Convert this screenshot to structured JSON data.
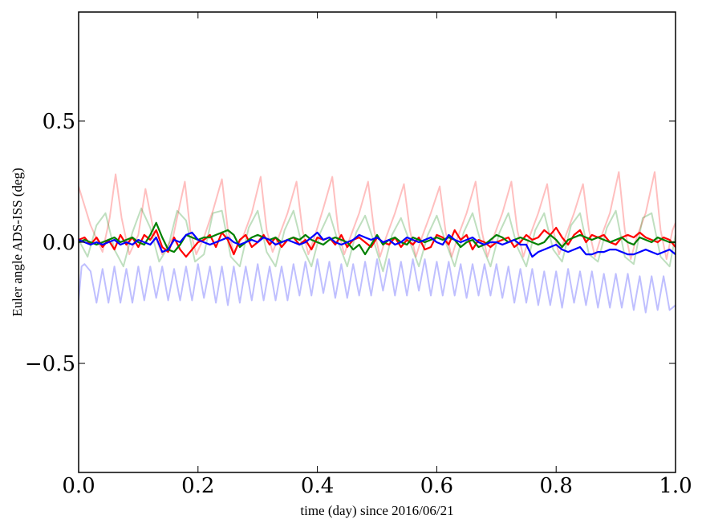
{
  "chart_data": {
    "type": "line",
    "title": "",
    "xlabel": "time (day) since 2016/06/21",
    "ylabel": "Euler angle ADS-ISS (deg)",
    "xlim": [
      0.0,
      1.0
    ],
    "ylim": [
      -0.95,
      0.95
    ],
    "grid": false,
    "legend": "none",
    "x_ticks": [
      0.0,
      0.2,
      0.4,
      0.6,
      0.8,
      1.0
    ],
    "x_tick_labels": [
      "0.0",
      "0.2",
      "0.4",
      "0.6",
      "0.8",
      "1.0"
    ],
    "y_ticks": [
      -0.5,
      0.0,
      0.5
    ],
    "y_tick_labels": [
      "−0.5",
      "0.0",
      "0.5"
    ],
    "series": [
      {
        "color": "#ff0000",
        "opacity": 0.25,
        "x": [
          0.0,
          0.02,
          0.04,
          0.052,
          0.062,
          0.072,
          0.085,
          0.1,
          0.112,
          0.127,
          0.14,
          0.158,
          0.17,
          0.178,
          0.187,
          0.197,
          0.21,
          0.225,
          0.24,
          0.25,
          0.26,
          0.275,
          0.29,
          0.305,
          0.315,
          0.325,
          0.335,
          0.35,
          0.365,
          0.375,
          0.385,
          0.395,
          0.41,
          0.425,
          0.435,
          0.445,
          0.455,
          0.47,
          0.485,
          0.495,
          0.505,
          0.515,
          0.53,
          0.545,
          0.555,
          0.565,
          0.575,
          0.59,
          0.605,
          0.615,
          0.625,
          0.635,
          0.65,
          0.665,
          0.675,
          0.685,
          0.695,
          0.71,
          0.725,
          0.735,
          0.745,
          0.755,
          0.77,
          0.785,
          0.795,
          0.805,
          0.815,
          0.83,
          0.845,
          0.855,
          0.865,
          0.875,
          0.89,
          0.905,
          0.915,
          0.925,
          0.935,
          0.95,
          0.965,
          0.975,
          0.985,
          0.995,
          1.0
        ],
        "y": [
          0.23,
          0.07,
          -0.04,
          0.1,
          0.28,
          0.1,
          -0.05,
          0.03,
          0.22,
          0.03,
          -0.05,
          0.02,
          0.16,
          0.25,
          0.05,
          -0.05,
          0.02,
          0.13,
          0.26,
          0.05,
          -0.04,
          0.02,
          0.12,
          0.27,
          0.05,
          -0.04,
          0.02,
          0.12,
          0.25,
          0.05,
          -0.05,
          0.02,
          0.14,
          0.27,
          0.05,
          -0.05,
          0.02,
          0.12,
          0.25,
          0.05,
          -0.06,
          0.02,
          0.12,
          0.24,
          0.05,
          -0.06,
          0.02,
          0.12,
          0.23,
          0.04,
          -0.06,
          0.02,
          0.12,
          0.25,
          0.05,
          -0.06,
          0.02,
          0.12,
          0.25,
          0.05,
          -0.06,
          0.02,
          0.12,
          0.24,
          0.05,
          -0.05,
          0.02,
          0.12,
          0.24,
          0.05,
          -0.06,
          0.02,
          0.12,
          0.29,
          0.05,
          -0.07,
          0.02,
          0.12,
          0.29,
          0.05,
          -0.07,
          0.05,
          0.08
        ]
      },
      {
        "color": "#008000",
        "opacity": 0.25,
        "x": [
          0.0,
          0.015,
          0.03,
          0.045,
          0.06,
          0.075,
          0.09,
          0.105,
          0.12,
          0.135,
          0.15,
          0.165,
          0.18,
          0.195,
          0.21,
          0.225,
          0.24,
          0.255,
          0.27,
          0.285,
          0.3,
          0.315,
          0.33,
          0.345,
          0.36,
          0.375,
          0.39,
          0.405,
          0.42,
          0.435,
          0.45,
          0.465,
          0.48,
          0.495,
          0.51,
          0.525,
          0.54,
          0.555,
          0.57,
          0.585,
          0.6,
          0.615,
          0.63,
          0.645,
          0.66,
          0.675,
          0.69,
          0.705,
          0.72,
          0.735,
          0.75,
          0.765,
          0.78,
          0.795,
          0.81,
          0.825,
          0.84,
          0.855,
          0.87,
          0.885,
          0.9,
          0.915,
          0.93,
          0.945,
          0.96,
          0.975,
          0.99,
          1.0
        ],
        "y": [
          0.01,
          -0.06,
          0.07,
          0.12,
          -0.03,
          -0.1,
          0.04,
          0.14,
          0.06,
          -0.08,
          -0.02,
          0.13,
          0.09,
          -0.08,
          -0.05,
          0.12,
          0.13,
          -0.06,
          -0.1,
          0.06,
          0.13,
          -0.04,
          -0.1,
          0.05,
          0.13,
          -0.02,
          -0.1,
          0.04,
          0.12,
          0.0,
          -0.1,
          0.04,
          0.11,
          0.0,
          -0.12,
          0.03,
          0.1,
          0.0,
          -0.1,
          0.03,
          0.11,
          0.0,
          -0.1,
          0.04,
          0.12,
          -0.01,
          -0.1,
          0.04,
          0.12,
          -0.02,
          -0.1,
          0.05,
          0.12,
          -0.03,
          -0.08,
          0.07,
          0.12,
          -0.05,
          -0.08,
          0.06,
          0.13,
          -0.06,
          -0.09,
          0.1,
          0.12,
          -0.06,
          -0.1,
          0.03
        ]
      },
      {
        "color": "#0000ff",
        "opacity": 0.25,
        "x": [
          0.0,
          0.005,
          0.01,
          0.02,
          0.03,
          0.04,
          0.05,
          0.06,
          0.07,
          0.08,
          0.09,
          0.1,
          0.11,
          0.12,
          0.13,
          0.14,
          0.15,
          0.16,
          0.17,
          0.18,
          0.19,
          0.2,
          0.21,
          0.22,
          0.23,
          0.24,
          0.25,
          0.26,
          0.27,
          0.28,
          0.29,
          0.3,
          0.31,
          0.32,
          0.33,
          0.34,
          0.35,
          0.36,
          0.37,
          0.38,
          0.39,
          0.4,
          0.41,
          0.42,
          0.43,
          0.44,
          0.45,
          0.46,
          0.47,
          0.48,
          0.49,
          0.5,
          0.51,
          0.52,
          0.53,
          0.54,
          0.55,
          0.56,
          0.57,
          0.58,
          0.59,
          0.6,
          0.61,
          0.62,
          0.63,
          0.64,
          0.65,
          0.66,
          0.67,
          0.68,
          0.69,
          0.7,
          0.71,
          0.72,
          0.73,
          0.74,
          0.75,
          0.76,
          0.77,
          0.78,
          0.79,
          0.8,
          0.81,
          0.82,
          0.83,
          0.84,
          0.85,
          0.86,
          0.87,
          0.88,
          0.89,
          0.9,
          0.91,
          0.92,
          0.93,
          0.94,
          0.95,
          0.96,
          0.97,
          0.98,
          0.99,
          1.0
        ],
        "y": [
          -0.24,
          -0.1,
          -0.09,
          -0.12,
          -0.25,
          -0.11,
          -0.25,
          -0.1,
          -0.25,
          -0.11,
          -0.25,
          -0.1,
          -0.24,
          -0.1,
          -0.23,
          -0.1,
          -0.24,
          -0.11,
          -0.24,
          -0.1,
          -0.24,
          -0.09,
          -0.23,
          -0.1,
          -0.25,
          -0.1,
          -0.26,
          -0.1,
          -0.25,
          -0.1,
          -0.24,
          -0.09,
          -0.24,
          -0.1,
          -0.24,
          -0.1,
          -0.24,
          -0.09,
          -0.22,
          -0.08,
          -0.22,
          -0.07,
          -0.21,
          -0.08,
          -0.23,
          -0.09,
          -0.23,
          -0.09,
          -0.22,
          -0.08,
          -0.22,
          -0.07,
          -0.2,
          -0.07,
          -0.22,
          -0.08,
          -0.22,
          -0.07,
          -0.2,
          -0.07,
          -0.22,
          -0.08,
          -0.22,
          -0.08,
          -0.22,
          -0.09,
          -0.23,
          -0.09,
          -0.22,
          -0.09,
          -0.22,
          -0.09,
          -0.23,
          -0.1,
          -0.25,
          -0.11,
          -0.25,
          -0.11,
          -0.26,
          -0.12,
          -0.26,
          -0.12,
          -0.27,
          -0.11,
          -0.25,
          -0.12,
          -0.26,
          -0.12,
          -0.27,
          -0.13,
          -0.27,
          -0.13,
          -0.27,
          -0.13,
          -0.28,
          -0.14,
          -0.29,
          -0.14,
          -0.28,
          -0.14,
          -0.28,
          -0.26
        ]
      },
      {
        "color": "#ff0000",
        "opacity": 1,
        "x": [
          0.0,
          0.01,
          0.02,
          0.03,
          0.04,
          0.05,
          0.06,
          0.07,
          0.08,
          0.09,
          0.1,
          0.11,
          0.12,
          0.13,
          0.14,
          0.15,
          0.16,
          0.17,
          0.18,
          0.19,
          0.2,
          0.21,
          0.22,
          0.23,
          0.24,
          0.25,
          0.26,
          0.27,
          0.28,
          0.29,
          0.3,
          0.31,
          0.32,
          0.33,
          0.34,
          0.35,
          0.36,
          0.37,
          0.38,
          0.39,
          0.4,
          0.41,
          0.42,
          0.43,
          0.44,
          0.45,
          0.46,
          0.47,
          0.48,
          0.49,
          0.5,
          0.51,
          0.52,
          0.53,
          0.54,
          0.55,
          0.56,
          0.57,
          0.58,
          0.59,
          0.6,
          0.61,
          0.62,
          0.63,
          0.64,
          0.65,
          0.66,
          0.67,
          0.68,
          0.69,
          0.7,
          0.71,
          0.72,
          0.73,
          0.74,
          0.75,
          0.76,
          0.77,
          0.78,
          0.79,
          0.8,
          0.81,
          0.82,
          0.83,
          0.84,
          0.85,
          0.86,
          0.87,
          0.88,
          0.89,
          0.9,
          0.91,
          0.92,
          0.93,
          0.94,
          0.95,
          0.96,
          0.97,
          0.98,
          0.99,
          1.0
        ],
        "y": [
          0.01,
          0.02,
          -0.01,
          0.02,
          -0.02,
          0.01,
          -0.03,
          0.03,
          -0.01,
          0.02,
          -0.02,
          0.03,
          0.01,
          0.05,
          -0.02,
          -0.04,
          0.02,
          -0.03,
          -0.06,
          -0.03,
          0.0,
          0.01,
          0.03,
          -0.02,
          0.04,
          0.01,
          -0.05,
          0.01,
          0.03,
          -0.02,
          0.0,
          0.03,
          -0.01,
          0.02,
          -0.02,
          0.01,
          0.02,
          -0.01,
          0.01,
          -0.03,
          0.02,
          0.01,
          0.02,
          -0.01,
          0.03,
          -0.02,
          0.01,
          0.02,
          0.0,
          -0.02,
          0.02,
          0.0,
          -0.01,
          0.02,
          -0.02,
          0.01,
          -0.01,
          0.02,
          -0.03,
          -0.02,
          0.03,
          0.02,
          -0.01,
          0.05,
          0.01,
          0.03,
          -0.03,
          0.01,
          0.0,
          -0.02,
          0.0,
          0.01,
          0.02,
          -0.02,
          0.0,
          0.03,
          0.01,
          0.02,
          0.05,
          0.03,
          0.06,
          0.02,
          -0.01,
          0.03,
          0.05,
          0.0,
          0.03,
          0.02,
          0.03,
          0.0,
          -0.01,
          0.02,
          0.03,
          0.02,
          0.04,
          0.02,
          0.01,
          0.0,
          0.02,
          0.01,
          -0.02
        ]
      },
      {
        "color": "#008000",
        "opacity": 1,
        "x": [
          0.0,
          0.01,
          0.02,
          0.03,
          0.04,
          0.05,
          0.06,
          0.07,
          0.08,
          0.09,
          0.1,
          0.11,
          0.12,
          0.13,
          0.14,
          0.15,
          0.16,
          0.17,
          0.18,
          0.19,
          0.2,
          0.21,
          0.22,
          0.23,
          0.24,
          0.25,
          0.26,
          0.27,
          0.28,
          0.29,
          0.3,
          0.31,
          0.32,
          0.33,
          0.34,
          0.35,
          0.36,
          0.37,
          0.38,
          0.39,
          0.4,
          0.41,
          0.42,
          0.43,
          0.44,
          0.45,
          0.46,
          0.47,
          0.48,
          0.49,
          0.5,
          0.51,
          0.52,
          0.53,
          0.54,
          0.55,
          0.56,
          0.57,
          0.58,
          0.59,
          0.6,
          0.61,
          0.62,
          0.63,
          0.64,
          0.65,
          0.66,
          0.67,
          0.68,
          0.69,
          0.7,
          0.71,
          0.72,
          0.73,
          0.74,
          0.75,
          0.76,
          0.77,
          0.78,
          0.79,
          0.8,
          0.81,
          0.82,
          0.83,
          0.84,
          0.85,
          0.86,
          0.87,
          0.88,
          0.89,
          0.9,
          0.91,
          0.92,
          0.93,
          0.94,
          0.95,
          0.96,
          0.97,
          0.98,
          0.99,
          1.0
        ],
        "y": [
          0.0,
          0.01,
          0.0,
          -0.01,
          0.0,
          0.01,
          0.02,
          0.0,
          0.01,
          0.02,
          0.0,
          -0.01,
          0.03,
          0.08,
          0.02,
          -0.03,
          -0.04,
          -0.01,
          0.03,
          0.02,
          0.01,
          0.02,
          0.02,
          0.03,
          0.04,
          0.05,
          0.03,
          -0.02,
          0.0,
          0.02,
          0.03,
          0.02,
          0.01,
          0.02,
          0.0,
          0.01,
          0.02,
          0.01,
          0.03,
          0.01,
          0.0,
          -0.01,
          0.01,
          0.02,
          0.01,
          0.0,
          -0.03,
          -0.01,
          -0.05,
          -0.01,
          0.03,
          -0.01,
          0.01,
          0.02,
          0.0,
          -0.01,
          0.02,
          0.01,
          0.0,
          0.01,
          0.02,
          0.01,
          0.02,
          0.01,
          -0.02,
          0.0,
          0.01,
          -0.02,
          -0.01,
          0.01,
          0.03,
          0.02,
          0.0,
          0.01,
          0.02,
          0.01,
          0.0,
          -0.01,
          0.0,
          0.03,
          0.01,
          -0.02,
          0.01,
          0.02,
          0.03,
          0.02,
          0.01,
          0.02,
          0.01,
          0.0,
          0.01,
          0.02,
          0.0,
          -0.01,
          0.02,
          0.01,
          0.0,
          0.02,
          0.01,
          0.0,
          0.0
        ]
      },
      {
        "color": "#0000ff",
        "opacity": 1,
        "x": [
          0.0,
          0.01,
          0.02,
          0.03,
          0.04,
          0.05,
          0.06,
          0.07,
          0.08,
          0.09,
          0.1,
          0.11,
          0.12,
          0.13,
          0.14,
          0.15,
          0.16,
          0.17,
          0.18,
          0.19,
          0.2,
          0.21,
          0.22,
          0.23,
          0.24,
          0.25,
          0.26,
          0.27,
          0.28,
          0.29,
          0.3,
          0.31,
          0.32,
          0.33,
          0.34,
          0.35,
          0.36,
          0.37,
          0.38,
          0.39,
          0.4,
          0.41,
          0.42,
          0.43,
          0.44,
          0.45,
          0.46,
          0.47,
          0.48,
          0.49,
          0.5,
          0.51,
          0.52,
          0.53,
          0.54,
          0.55,
          0.56,
          0.57,
          0.58,
          0.59,
          0.6,
          0.61,
          0.62,
          0.63,
          0.64,
          0.65,
          0.66,
          0.67,
          0.68,
          0.69,
          0.7,
          0.71,
          0.72,
          0.73,
          0.74,
          0.75,
          0.76,
          0.77,
          0.78,
          0.79,
          0.8,
          0.81,
          0.82,
          0.83,
          0.84,
          0.85,
          0.86,
          0.87,
          0.88,
          0.89,
          0.9,
          0.91,
          0.92,
          0.93,
          0.94,
          0.95,
          0.96,
          0.97,
          0.98,
          0.99,
          1.0
        ],
        "y": [
          0.01,
          0.0,
          -0.01,
          0.0,
          -0.01,
          0.0,
          0.01,
          -0.01,
          0.0,
          -0.01,
          0.01,
          0.0,
          -0.01,
          0.02,
          -0.04,
          -0.03,
          0.01,
          0.0,
          0.03,
          0.04,
          0.01,
          0.0,
          -0.01,
          0.0,
          0.01,
          0.02,
          0.0,
          -0.01,
          0.0,
          0.01,
          0.0,
          0.02,
          0.01,
          -0.01,
          0.0,
          0.01,
          0.0,
          -0.01,
          0.0,
          0.02,
          0.04,
          0.01,
          0.02,
          0.0,
          -0.01,
          0.0,
          0.01,
          0.03,
          0.02,
          0.01,
          0.02,
          0.0,
          0.01,
          -0.01,
          0.0,
          0.02,
          0.01,
          0.0,
          0.01,
          0.02,
          0.0,
          -0.01,
          0.03,
          0.01,
          0.0,
          0.01,
          0.02,
          0.0,
          -0.01,
          0.0,
          0.0,
          -0.01,
          0.0,
          0.01,
          -0.01,
          -0.01,
          -0.06,
          -0.04,
          -0.03,
          -0.02,
          -0.01,
          -0.03,
          -0.04,
          -0.03,
          -0.02,
          -0.05,
          -0.05,
          -0.04,
          -0.04,
          -0.03,
          -0.03,
          -0.04,
          -0.05,
          -0.05,
          -0.04,
          -0.03,
          -0.04,
          -0.05,
          -0.04,
          -0.03,
          -0.05
        ]
      }
    ]
  }
}
